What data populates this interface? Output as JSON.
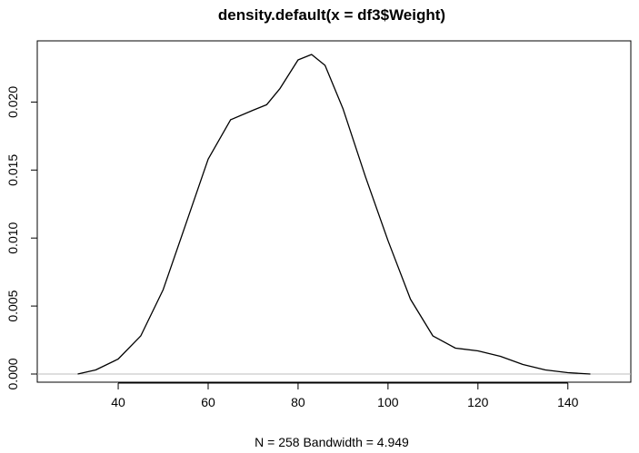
{
  "chart_data": {
    "type": "line",
    "title": "density.default(x = df3$Weight)",
    "xlabel": "N = 258   Bandwidth = 4.949",
    "ylabel": "",
    "xlim": [
      22,
      154
    ],
    "ylim": [
      -0.0006,
      0.0245
    ],
    "x_ticks": [
      40,
      60,
      80,
      100,
      120,
      140
    ],
    "y_ticks": [
      0.0,
      0.005,
      0.01,
      0.015,
      0.02
    ],
    "x_tick_labels": [
      "40",
      "60",
      "80",
      "100",
      "120",
      "140"
    ],
    "y_tick_labels": [
      "0.000",
      "0.005",
      "0.010",
      "0.015",
      "0.020"
    ],
    "baseline": 0,
    "baseline_color": "#bebebe",
    "line_color": "#000000",
    "grid": false,
    "series": [
      {
        "x": [
          31,
          35,
          40,
          45,
          50,
          55,
          60,
          65,
          70,
          73,
          76,
          80,
          83,
          86,
          90,
          95,
          100,
          105,
          110,
          115,
          120,
          125,
          130,
          135,
          140,
          145
        ],
        "y": [
          0.0,
          0.0003,
          0.0011,
          0.0028,
          0.0062,
          0.011,
          0.0158,
          0.0187,
          0.0194,
          0.0198,
          0.021,
          0.0231,
          0.0235,
          0.0227,
          0.0195,
          0.0145,
          0.0098,
          0.0055,
          0.0028,
          0.0019,
          0.0017,
          0.0013,
          0.0007,
          0.0003,
          0.0001,
          0.0
        ]
      }
    ]
  }
}
